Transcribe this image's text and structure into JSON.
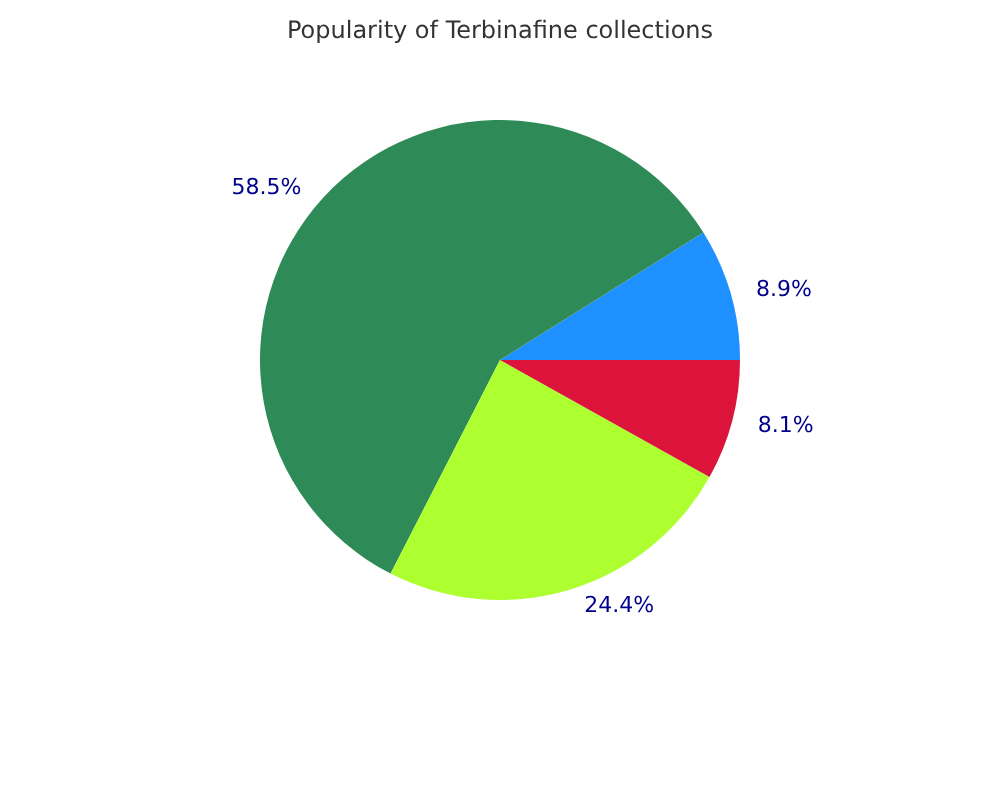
{
  "chart_data": {
    "type": "pie",
    "title": "Popularity of Terbinafine collections",
    "categories": [
      null,
      null,
      null,
      null
    ],
    "values": [
      8.9,
      58.5,
      24.4,
      8.1
    ],
    "colors": [
      "#1e90ff",
      "#2e8b57",
      "#adff2f",
      "#dc143c"
    ],
    "value_labels": [
      "8.9%",
      "58.5%",
      "24.4%",
      "8.1%"
    ]
  }
}
